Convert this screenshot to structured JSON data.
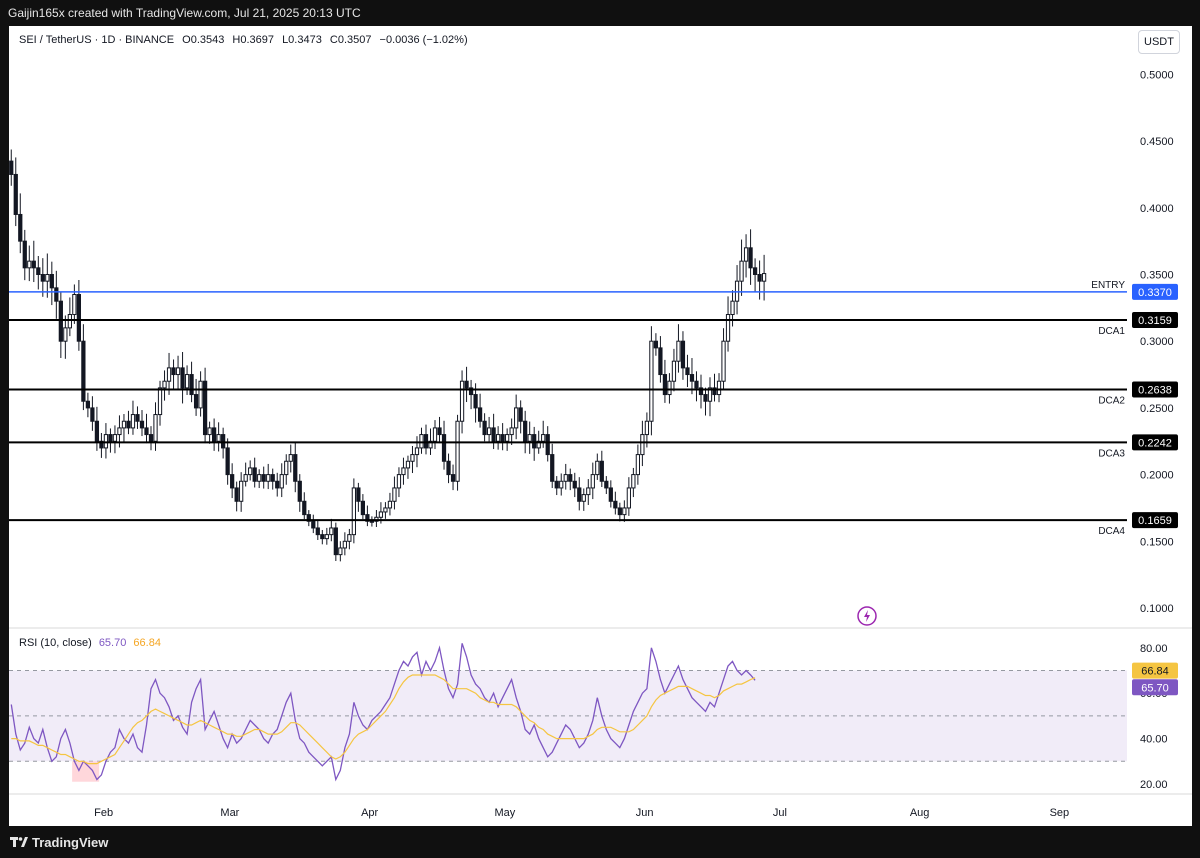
{
  "header": {
    "attribution": "Gaijin165x created with TradingView.com, Jul 21, 2025 20:13 UTC"
  },
  "legend": {
    "symbol": "SEI / TetherUS · 1D · BINANCE",
    "open": "O0.3543",
    "high": "H0.3697",
    "low": "L0.3473",
    "close": "C0.3507",
    "change": "−0.0036 (−1.02%)"
  },
  "currency": "USDT",
  "rsi_legend": {
    "label": "RSI (10, close)",
    "value1": "65.70",
    "value2": "66.84"
  },
  "footer": {
    "brand": "TradingView"
  },
  "colors": {
    "entry_line": "#2962ff",
    "level_line": "#000000",
    "rsi_line": "#7e57c2",
    "rsi_ma": "#f5c542",
    "rsi_band": "#ede7f6",
    "candle": "#131722"
  },
  "chart_data": [
    {
      "type": "candlestick",
      "title": "SEI / TetherUS · 1D · BINANCE",
      "y_ticks": [
        "0.5000",
        "0.4500",
        "0.4000",
        "0.3500",
        "0.3000",
        "0.2500",
        "0.2000",
        "0.1500",
        "0.1000"
      ],
      "ylim": [
        0.08,
        0.52
      ],
      "x_ticks": [
        "Feb",
        "Mar",
        "Apr",
        "May",
        "Jun",
        "Jul",
        "Aug",
        "Sep"
      ],
      "x_range": [
        "2025-01-11",
        "2025-09-16"
      ],
      "levels": [
        {
          "name": "ENTRY",
          "value": 0.337,
          "label": "0.3370"
        },
        {
          "name": "DCA1",
          "value": 0.3159,
          "label": "0.3159"
        },
        {
          "name": "DCA2",
          "value": 0.2638,
          "label": "0.2638"
        },
        {
          "name": "DCA3",
          "value": 0.2242,
          "label": "0.2242"
        },
        {
          "name": "DCA4",
          "value": 0.1659,
          "label": "0.1659"
        }
      ],
      "close_series": [
        0.425,
        0.395,
        0.375,
        0.355,
        0.36,
        0.355,
        0.35,
        0.345,
        0.35,
        0.34,
        0.33,
        0.3,
        0.31,
        0.32,
        0.335,
        0.3,
        0.255,
        0.25,
        0.24,
        0.225,
        0.22,
        0.23,
        0.225,
        0.23,
        0.235,
        0.24,
        0.235,
        0.245,
        0.24,
        0.235,
        0.23,
        0.225,
        0.245,
        0.265,
        0.27,
        0.28,
        0.275,
        0.28,
        0.265,
        0.275,
        0.26,
        0.25,
        0.27,
        0.23,
        0.235,
        0.225,
        0.23,
        0.22,
        0.2,
        0.19,
        0.18,
        0.195,
        0.2,
        0.205,
        0.195,
        0.2,
        0.195,
        0.2,
        0.195,
        0.19,
        0.2,
        0.21,
        0.215,
        0.195,
        0.18,
        0.17,
        0.165,
        0.16,
        0.155,
        0.152,
        0.155,
        0.16,
        0.14,
        0.145,
        0.15,
        0.155,
        0.19,
        0.18,
        0.17,
        0.165,
        0.165,
        0.168,
        0.172,
        0.175,
        0.18,
        0.19,
        0.2,
        0.205,
        0.21,
        0.215,
        0.22,
        0.23,
        0.22,
        0.225,
        0.235,
        0.23,
        0.21,
        0.2,
        0.195,
        0.24,
        0.27,
        0.265,
        0.26,
        0.25,
        0.24,
        0.23,
        0.235,
        0.225,
        0.23,
        0.225,
        0.23,
        0.235,
        0.25,
        0.24,
        0.225,
        0.23,
        0.22,
        0.225,
        0.23,
        0.215,
        0.195,
        0.19,
        0.195,
        0.2,
        0.195,
        0.19,
        0.18,
        0.185,
        0.19,
        0.2,
        0.21,
        0.195,
        0.19,
        0.18,
        0.175,
        0.17,
        0.175,
        0.19,
        0.2,
        0.215,
        0.23,
        0.24,
        0.3,
        0.295,
        0.275,
        0.26,
        0.27,
        0.285,
        0.3,
        0.28,
        0.275,
        0.27,
        0.265,
        0.26,
        0.255,
        0.265,
        0.26,
        0.27,
        0.3,
        0.32,
        0.33,
        0.345,
        0.36,
        0.37,
        0.355,
        0.35,
        0.345,
        0.3507
      ]
    },
    {
      "type": "line",
      "title": "RSI (10, close)",
      "y_ticks": [
        "80.00",
        "60.00",
        "40.00",
        "20.00"
      ],
      "ylim": [
        14,
        86
      ],
      "bands": [
        30,
        50,
        70
      ],
      "highlight_labels": [
        {
          "value": 66.84,
          "label": "66.84"
        },
        {
          "value": 65.7,
          "label": "65.70"
        }
      ],
      "series": [
        {
          "name": "RSI",
          "values": [
            55,
            42,
            35,
            38,
            45,
            40,
            38,
            44,
            36,
            30,
            32,
            40,
            44,
            38,
            30,
            26,
            30,
            28,
            26,
            22,
            24,
            30,
            34,
            36,
            44,
            40,
            38,
            42,
            36,
            34,
            46,
            62,
            66,
            60,
            58,
            54,
            48,
            50,
            45,
            42,
            56,
            62,
            66,
            44,
            48,
            52,
            46,
            40,
            36,
            42,
            38,
            40,
            44,
            48,
            46,
            44,
            40,
            38,
            42,
            44,
            50,
            56,
            60,
            48,
            40,
            38,
            34,
            32,
            30,
            28,
            30,
            32,
            22,
            26,
            36,
            42,
            56,
            50,
            46,
            44,
            48,
            50,
            52,
            55,
            58,
            64,
            70,
            74,
            72,
            76,
            78,
            68,
            74,
            70,
            74,
            80,
            70,
            62,
            58,
            64,
            82,
            76,
            68,
            64,
            62,
            58,
            56,
            60,
            54,
            58,
            62,
            66,
            58,
            52,
            44,
            42,
            46,
            40,
            36,
            32,
            34,
            38,
            42,
            46,
            44,
            40,
            36,
            38,
            42,
            48,
            58,
            50,
            44,
            40,
            38,
            36,
            40,
            46,
            52,
            56,
            60,
            62,
            80,
            74,
            66,
            60,
            64,
            68,
            72,
            66,
            62,
            58,
            56,
            54,
            52,
            56,
            54,
            60,
            66,
            72,
            74,
            70,
            68,
            70,
            68,
            65.7
          ]
        },
        {
          "name": "MA",
          "values": [
            40,
            40,
            39,
            39,
            39,
            38,
            37,
            37,
            36,
            35,
            34,
            33,
            33,
            32,
            31,
            30,
            30,
            29,
            29,
            29,
            30,
            31,
            32,
            33,
            36,
            39,
            42,
            45,
            47,
            48,
            50,
            52,
            53,
            52,
            51,
            50,
            49,
            48,
            47,
            46,
            46,
            47,
            48,
            47,
            46,
            45,
            44,
            43,
            42,
            42,
            41,
            41,
            42,
            43,
            44,
            44,
            43,
            42,
            42,
            42,
            43,
            45,
            47,
            47,
            46,
            44,
            42,
            40,
            38,
            36,
            34,
            32,
            31,
            32,
            34,
            37,
            40,
            42,
            43,
            44,
            46,
            48,
            50,
            52,
            55,
            58,
            62,
            65,
            67,
            68,
            68,
            68,
            68,
            68,
            68,
            67,
            66,
            64,
            62,
            62,
            62,
            62,
            61,
            60,
            58,
            57,
            56,
            56,
            55,
            55,
            55,
            55,
            54,
            52,
            50,
            48,
            47,
            45,
            44,
            42,
            41,
            40,
            40,
            40,
            40,
            40,
            40,
            40,
            41,
            42,
            44,
            45,
            45,
            45,
            44,
            43,
            43,
            43,
            44,
            46,
            48,
            50,
            54,
            57,
            59,
            60,
            61,
            62,
            63,
            63,
            63,
            62,
            61,
            60,
            59,
            59,
            58,
            59,
            61,
            62,
            63,
            64,
            64,
            65,
            66,
            66.84
          ]
        }
      ]
    }
  ]
}
